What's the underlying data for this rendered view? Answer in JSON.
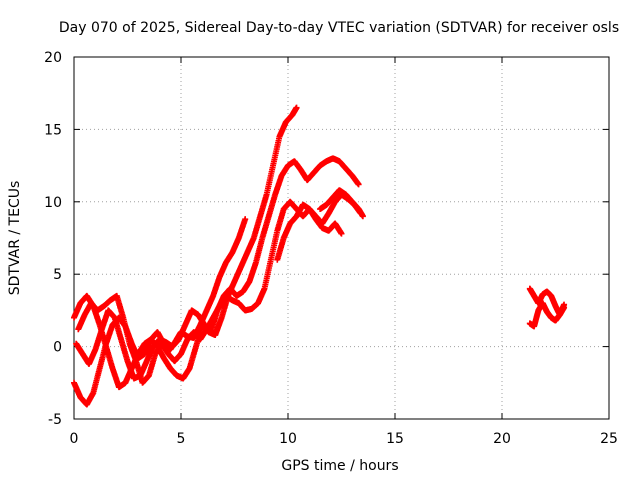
{
  "chart_data": {
    "type": "scatter",
    "title": "Day 070 of 2025, Sidereal Day-to-day VTEC variation (SDTVAR) for receiver osls",
    "xlabel": "GPS time / hours",
    "ylabel": "SDTVAR / TECUs",
    "xlim": [
      0,
      25
    ],
    "ylim": [
      -5,
      20
    ],
    "xticks": [
      0,
      5,
      10,
      15,
      20,
      25
    ],
    "yticks": [
      -5,
      0,
      5,
      10,
      15,
      20
    ],
    "xtick_labels": [
      "0",
      "5",
      "10",
      "15",
      "20",
      "25"
    ],
    "ytick_labels": [
      "-5",
      "0",
      "5",
      "10",
      "15",
      "20"
    ],
    "grid": true,
    "marker": "plus",
    "color": "#ff0000",
    "series": [
      {
        "name": "track-1",
        "x": [
          0.0,
          0.3,
          0.6,
          0.9,
          1.2,
          1.5,
          1.8,
          2.1,
          2.4,
          2.7,
          3.0,
          3.3,
          3.6,
          3.9,
          4.2,
          4.5,
          4.8,
          5.0,
          5.3,
          5.6,
          5.9,
          6.2,
          6.5,
          6.8,
          7.1,
          7.4,
          7.7,
          8.0
        ],
        "y": [
          -2.5,
          -3.5,
          -4.0,
          -3.2,
          -1.5,
          0.2,
          1.5,
          2.0,
          1.4,
          0.2,
          -0.8,
          -0.5,
          0.5,
          1.0,
          0.2,
          -0.2,
          0.5,
          1.0,
          0.7,
          0.6,
          1.5,
          2.5,
          3.5,
          4.8,
          5.8,
          6.5,
          7.5,
          8.8
        ]
      },
      {
        "name": "track-2",
        "x": [
          0.0,
          0.3,
          0.6,
          0.9,
          1.2,
          1.5,
          1.8,
          2.1,
          2.4,
          2.7,
          3.0,
          3.3,
          3.6,
          3.9,
          4.2,
          4.5,
          4.8,
          5.1,
          5.4,
          5.7,
          6.0,
          6.3,
          6.6,
          6.9,
          7.2,
          7.5,
          7.8,
          8.1,
          8.4,
          8.7,
          9.0,
          9.3,
          9.6,
          9.9,
          10.2,
          10.4
        ],
        "y": [
          2.0,
          3.0,
          3.5,
          2.8,
          1.5,
          0.0,
          -1.5,
          -2.8,
          -2.5,
          -1.5,
          -0.5,
          0.2,
          0.5,
          0.0,
          -0.8,
          -1.5,
          -2.0,
          -2.2,
          -1.5,
          0.0,
          1.5,
          1.0,
          0.8,
          2.0,
          3.5,
          4.5,
          5.5,
          6.5,
          7.5,
          9.0,
          10.5,
          12.5,
          14.5,
          15.5,
          16.0,
          16.5
        ]
      },
      {
        "name": "track-3",
        "x": [
          0.1,
          0.4,
          0.7,
          1.0,
          1.3,
          1.6,
          1.9,
          2.2,
          2.5,
          2.8,
          3.1,
          3.4,
          3.7,
          4.0,
          4.3,
          4.6,
          4.9,
          5.2,
          5.5,
          5.8,
          6.1,
          6.4,
          6.7,
          7.0,
          7.3,
          7.6,
          7.9,
          8.2,
          8.5,
          8.8,
          9.1,
          9.4,
          9.7,
          10.0,
          10.3,
          10.6,
          10.9,
          11.2,
          11.5,
          11.8,
          12.1,
          12.4,
          12.7,
          13.0,
          13.3
        ],
        "y": [
          0.2,
          -0.5,
          -1.2,
          -0.2,
          1.2,
          2.5,
          2.0,
          0.5,
          -1.0,
          -2.2,
          -2.0,
          -1.0,
          0.0,
          0.5,
          0.3,
          0.0,
          0.5,
          1.5,
          2.5,
          2.2,
          1.5,
          1.0,
          2.5,
          3.5,
          4.0,
          3.5,
          3.8,
          4.5,
          5.8,
          7.5,
          9.0,
          10.5,
          11.8,
          12.5,
          12.8,
          12.2,
          11.5,
          12.0,
          12.5,
          12.8,
          13.0,
          12.8,
          12.3,
          11.8,
          11.2
        ]
      },
      {
        "name": "track-4",
        "x": [
          0.2,
          0.5,
          0.8,
          1.1,
          1.4,
          1.7,
          2.0,
          2.3,
          2.6,
          2.9,
          3.2,
          3.5,
          3.8,
          4.1,
          4.4,
          4.7,
          5.0,
          5.3,
          5.6,
          5.9,
          6.2,
          6.5,
          6.8,
          7.1,
          7.4,
          7.7,
          8.0,
          8.3,
          8.6,
          8.9,
          9.2,
          9.5,
          9.8,
          10.1,
          10.4,
          10.7,
          11.0,
          11.3,
          11.6,
          11.9,
          12.2,
          12.5
        ],
        "y": [
          1.2,
          2.2,
          3.0,
          2.5,
          2.8,
          3.2,
          3.5,
          2.0,
          0.2,
          -1.0,
          -2.5,
          -2.0,
          -0.5,
          0.2,
          -0.5,
          -1.0,
          -0.5,
          0.5,
          1.0,
          0.5,
          1.2,
          2.0,
          2.8,
          3.5,
          3.2,
          3.0,
          2.5,
          2.6,
          3.0,
          4.0,
          6.0,
          8.0,
          9.5,
          10.0,
          9.5,
          9.0,
          9.5,
          8.8,
          8.2,
          8.0,
          8.5,
          7.8
        ]
      },
      {
        "name": "track-5",
        "x": [
          9.5,
          9.8,
          10.1,
          10.4,
          10.7,
          11.0,
          11.3,
          11.6,
          11.9,
          12.2,
          12.5,
          12.8,
          13.1,
          13.4
        ],
        "y": [
          6.0,
          7.5,
          8.5,
          9.0,
          9.8,
          9.5,
          9.0,
          8.5,
          9.2,
          10.0,
          10.5,
          10.2,
          9.8,
          9.2
        ]
      },
      {
        "name": "track-6",
        "x": [
          11.5,
          11.8,
          12.1,
          12.4,
          12.7,
          13.0,
          13.3,
          13.5
        ],
        "y": [
          9.5,
          9.8,
          10.3,
          10.8,
          10.5,
          10.0,
          9.5,
          9.0
        ]
      },
      {
        "name": "track-7",
        "x": [
          21.3,
          21.5,
          21.7,
          21.9,
          22.1,
          22.3,
          22.5,
          22.7,
          22.9
        ],
        "y": [
          4.0,
          3.5,
          3.0,
          3.6,
          3.8,
          3.5,
          2.8,
          2.2,
          2.7
        ]
      },
      {
        "name": "track-8",
        "x": [
          21.3,
          21.5,
          21.7,
          21.9,
          22.1,
          22.3,
          22.5,
          22.7,
          22.9
        ],
        "y": [
          1.6,
          1.4,
          2.5,
          3.0,
          2.4,
          2.0,
          1.8,
          2.2,
          2.9
        ]
      }
    ]
  }
}
